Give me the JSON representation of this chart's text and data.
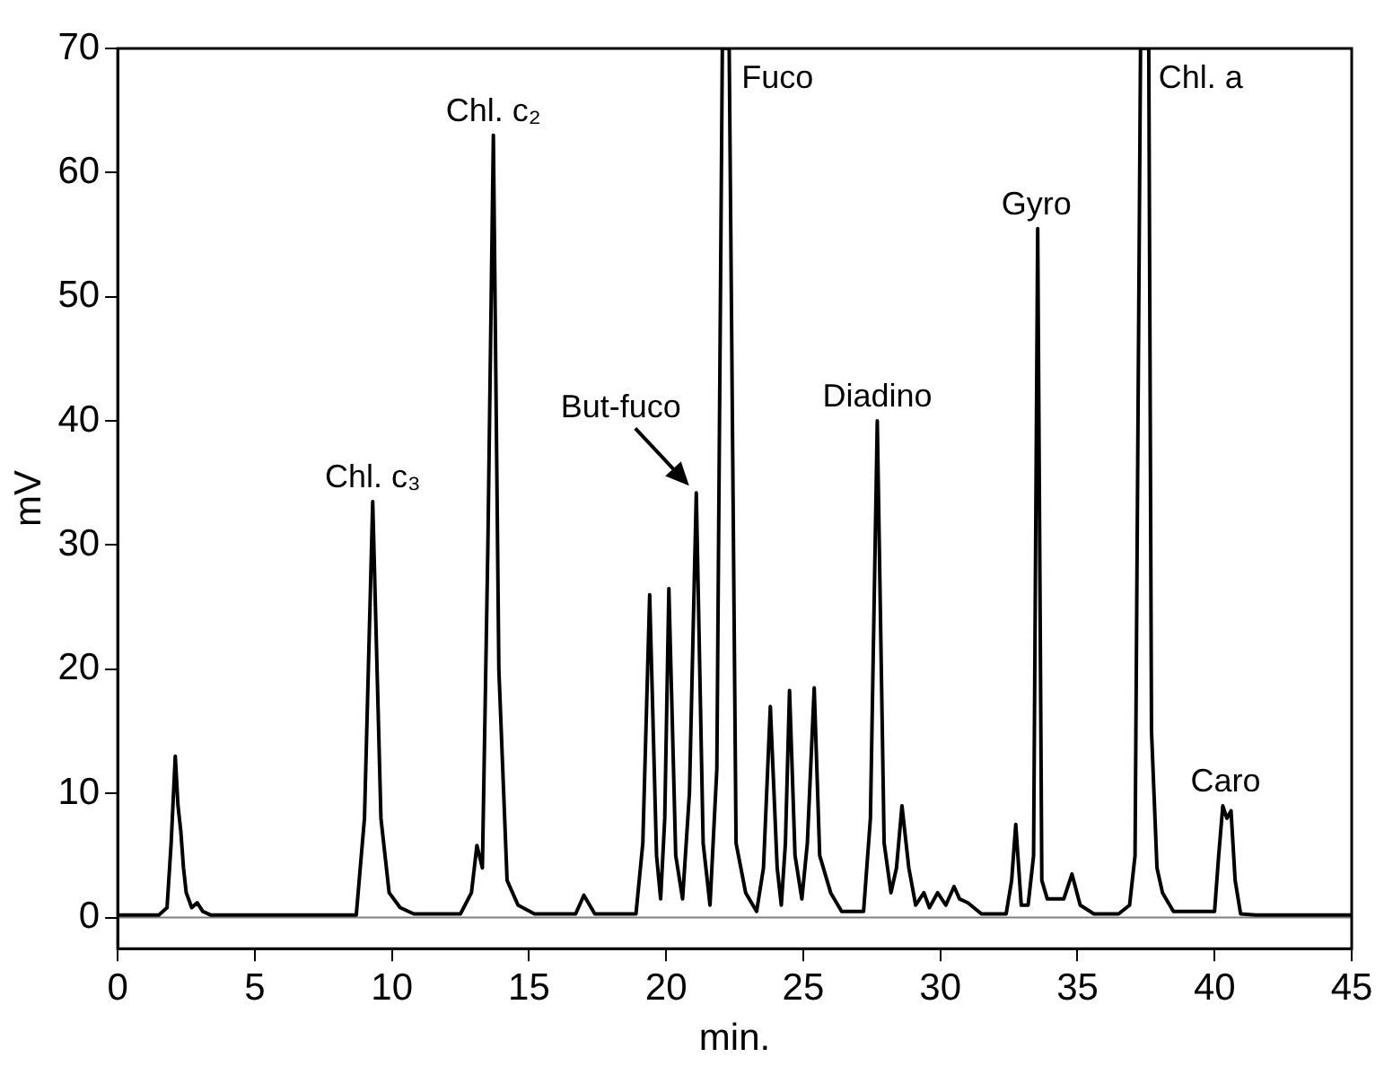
{
  "chart_data": {
    "type": "line",
    "xlabel": "min.",
    "ylabel": "mV",
    "xlim": [
      0,
      45
    ],
    "ylim": [
      -2.5,
      70
    ],
    "xticks": [
      0,
      5,
      10,
      15,
      20,
      25,
      30,
      35,
      40,
      45
    ],
    "yticks": [
      0,
      10,
      20,
      30,
      40,
      50,
      60,
      70
    ],
    "grid": false,
    "legend": false,
    "marker": "none",
    "line_style": "solid",
    "series": [
      {
        "color": "#000000",
        "x": [
          0,
          1.5,
          1.8,
          1.95,
          2.1,
          2.2,
          2.3,
          2.4,
          2.5,
          2.7,
          2.9,
          3.1,
          3.4,
          5,
          8.7,
          9.0,
          9.3,
          9.6,
          9.9,
          10.3,
          10.8,
          12.5,
          12.9,
          13.1,
          13.3,
          13.5,
          13.7,
          13.9,
          14.2,
          14.6,
          15.2,
          16.7,
          17.0,
          17.4,
          18.9,
          19.15,
          19.4,
          19.65,
          19.8,
          19.95,
          20.1,
          20.35,
          20.6,
          20.85,
          21.1,
          21.35,
          21.6,
          21.85,
          22.05,
          22.3,
          22.55,
          22.9,
          23.3,
          23.55,
          23.8,
          24.05,
          24.2,
          24.35,
          24.5,
          24.7,
          24.95,
          25.15,
          25.4,
          25.6,
          25.8,
          26.0,
          26.4,
          27.2,
          27.45,
          27.7,
          27.95,
          28.2,
          28.4,
          28.6,
          28.85,
          29.1,
          29.4,
          29.6,
          29.9,
          30.2,
          30.5,
          30.7,
          31.0,
          31.5,
          32.4,
          32.6,
          32.75,
          32.95,
          33.2,
          33.4,
          33.55,
          33.7,
          33.9,
          34.5,
          34.8,
          35.1,
          35.6,
          36.5,
          36.9,
          37.1,
          37.3,
          37.6,
          37.7,
          37.9,
          38.1,
          38.5,
          39.5,
          40.0,
          40.15,
          40.3,
          40.45,
          40.6,
          40.75,
          40.95,
          41.5,
          45
        ],
        "values": [
          0.2,
          0.2,
          0.8,
          6,
          13,
          9,
          7,
          4,
          2,
          0.8,
          1.2,
          0.5,
          0.2,
          0.2,
          0.2,
          8,
          33.5,
          8,
          2,
          0.8,
          0.3,
          0.3,
          2,
          5.8,
          4,
          30,
          63,
          20,
          3,
          1,
          0.3,
          0.3,
          1.8,
          0.3,
          0.3,
          6,
          26,
          5,
          1.5,
          8,
          26.5,
          5,
          1.5,
          10,
          34.2,
          6,
          1,
          12,
          70,
          70,
          6,
          2,
          0.5,
          4,
          17,
          4,
          1,
          6,
          18.3,
          5,
          1.5,
          6,
          18.5,
          5,
          3.5,
          2,
          0.5,
          0.5,
          8,
          40,
          6,
          2,
          4,
          9,
          4,
          1,
          2,
          0.8,
          2,
          1,
          2.5,
          1.5,
          1.2,
          0.3,
          0.3,
          3,
          7.5,
          1,
          1,
          5,
          55.5,
          3,
          1.5,
          1.5,
          3.5,
          1,
          0.3,
          0.3,
          1,
          5,
          70,
          70,
          15,
          4,
          2,
          0.5,
          0.5,
          0.5,
          5,
          9,
          8,
          8.6,
          3,
          0.3,
          0.2,
          0.2
        ]
      }
    ],
    "ref_lines": [
      {
        "axis": "y",
        "value": 0,
        "color": "#808080"
      }
    ],
    "annotations": [
      {
        "text": "Chl. c₃",
        "x": 9.3,
        "y": 33.5
      },
      {
        "text": "Chl. c₂",
        "x": 13.7,
        "y": 63
      },
      {
        "text": "But-fuco",
        "x": 21.1,
        "y": 34.2
      },
      {
        "text": "Fuco",
        "x": 22.1,
        "y": 70
      },
      {
        "text": "Diadino",
        "x": 27.7,
        "y": 40
      },
      {
        "text": "Gyro",
        "x": 33.5,
        "y": 55.5
      },
      {
        "text": "Chl. a",
        "x": 37.3,
        "y": 70
      },
      {
        "text": "Caro",
        "x": 40.4,
        "y": 9
      }
    ]
  }
}
